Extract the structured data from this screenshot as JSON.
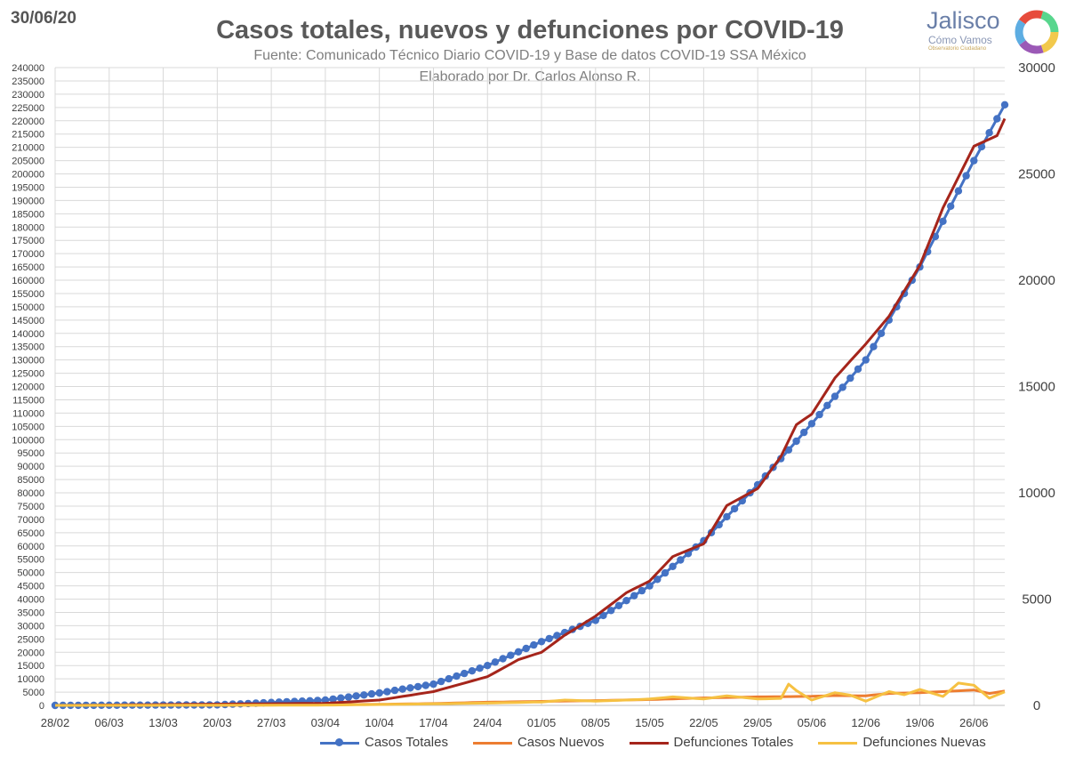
{
  "date_label": "30/06/20",
  "logo": {
    "title": "Jalisco",
    "subtitle": "Cómo Vamos",
    "tagline": "Observatorio Ciudadano"
  },
  "chart_data": {
    "type": "line",
    "title": "Casos totales, nuevos y defunciones por COVID-19",
    "subtitle": "Fuente: Comunicado Técnico Diario COVID-19 y Base de datos COVID-19 SSA México",
    "author": "Elaborado por Dr. Carlos Alonso R.",
    "x_start": "2020-02-28",
    "days": 124,
    "x_ticks": [
      "28/02",
      "06/03",
      "13/03",
      "20/03",
      "27/03",
      "03/04",
      "10/04",
      "17/04",
      "24/04",
      "01/05",
      "08/05",
      "15/05",
      "22/05",
      "29/05",
      "05/06",
      "12/06",
      "19/06",
      "26/06"
    ],
    "y_left": {
      "min": 0,
      "max": 240000,
      "step": 5000
    },
    "y_right": {
      "min": 0,
      "max": 30000,
      "step": 5000,
      "ticks": [
        "0",
        "5000",
        "10000",
        "15000",
        "20000",
        "25000",
        "30000"
      ]
    },
    "grid": true,
    "legend_position": "bottom",
    "series": [
      {
        "name": "Casos Totales",
        "axis": "left",
        "color": "#4472c4",
        "markers": true,
        "x": [
          0,
          21,
          28,
          35,
          42,
          49,
          56,
          63,
          70,
          77,
          84,
          91,
          98,
          105,
          112,
          119,
          123
        ],
        "values": [
          1,
          200,
          1100,
          2000,
          4700,
          8000,
          15000,
          24000,
          32000,
          45000,
          62000,
          83000,
          106000,
          130000,
          165000,
          205000,
          226000
        ]
      },
      {
        "name": "Casos Nuevos",
        "axis": "left",
        "color": "#ed7d31",
        "markers": false,
        "x": [
          0,
          21,
          28,
          35,
          42,
          49,
          56,
          63,
          70,
          77,
          84,
          91,
          98,
          101,
          105,
          108,
          112,
          115,
          119,
          121,
          123
        ],
        "values": [
          0,
          30,
          150,
          250,
          400,
          700,
          1200,
          1500,
          1800,
          2200,
          2800,
          3200,
          3400,
          3700,
          3600,
          4500,
          4800,
          5200,
          5800,
          4500,
          5400
        ]
      },
      {
        "name": "Defunciones Totales",
        "axis": "right",
        "color": "#a5251b",
        "markers": false,
        "x": [
          0,
          35,
          42,
          49,
          56,
          60,
          63,
          66,
          70,
          74,
          77,
          80,
          84,
          87,
          91,
          94,
          96,
          98,
          101,
          105,
          108,
          112,
          115,
          119,
          122,
          123
        ],
        "values": [
          0,
          100,
          250,
          650,
          1350,
          2150,
          2500,
          3300,
          4200,
          5300,
          5850,
          7000,
          7600,
          9400,
          10200,
          11700,
          13200,
          13700,
          15400,
          17000,
          18300,
          20700,
          23400,
          26300,
          26800,
          27600
        ]
      },
      {
        "name": "Defunciones Nuevas",
        "axis": "right",
        "color": "#f6c142",
        "markers": false,
        "x": [
          0,
          35,
          42,
          49,
          56,
          63,
          66,
          70,
          74,
          77,
          80,
          84,
          87,
          91,
          94,
          95,
          96,
          98,
          101,
          103,
          105,
          108,
          110,
          112,
          115,
          117,
          119,
          121,
          123
        ],
        "values": [
          0,
          15,
          40,
          70,
          110,
          160,
          250,
          200,
          250,
          300,
          400,
          300,
          450,
          300,
          330,
          1000,
          700,
          250,
          600,
          480,
          200,
          650,
          500,
          750,
          420,
          1050,
          950,
          340,
          640
        ]
      }
    ]
  }
}
